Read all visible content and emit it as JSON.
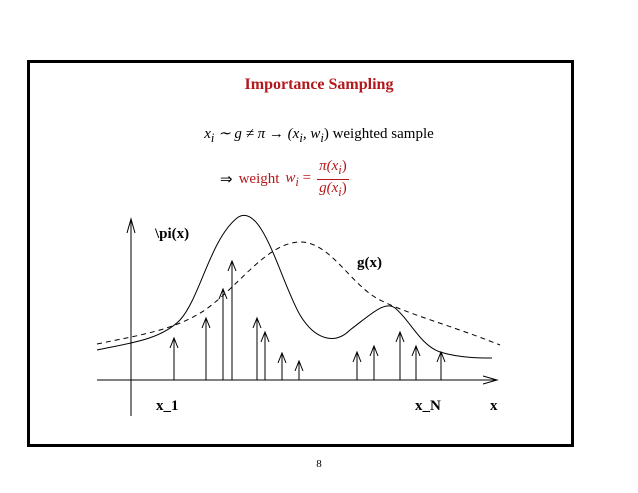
{
  "colors": {
    "accent": "#b3191c",
    "ink": "#000000"
  },
  "title": "Importance Sampling",
  "line1": {
    "xi": "x",
    "xi_sub": "i",
    "relation": " ∼ g ≠ π → (x",
    "pair_sub1": "i",
    "pair_mid": ", w",
    "pair_sub2": "i",
    "pair_end": ")",
    "suffix": " weighted sample"
  },
  "line2": {
    "implies": "⇒",
    "weight_word": "weight",
    "w": "w",
    "w_sub": "i",
    "equals": " =",
    "numerator": "π(x",
    "numerator_sub": "i",
    "numerator_end": ")",
    "denominator": "g(x",
    "denominator_sub": "i",
    "denominator_end": ")"
  },
  "labels": {
    "pi": "\\pi(x)",
    "g": "g(x)",
    "x1": "x_1",
    "xN": "x_N",
    "x": "x"
  },
  "page_number": "8"
}
